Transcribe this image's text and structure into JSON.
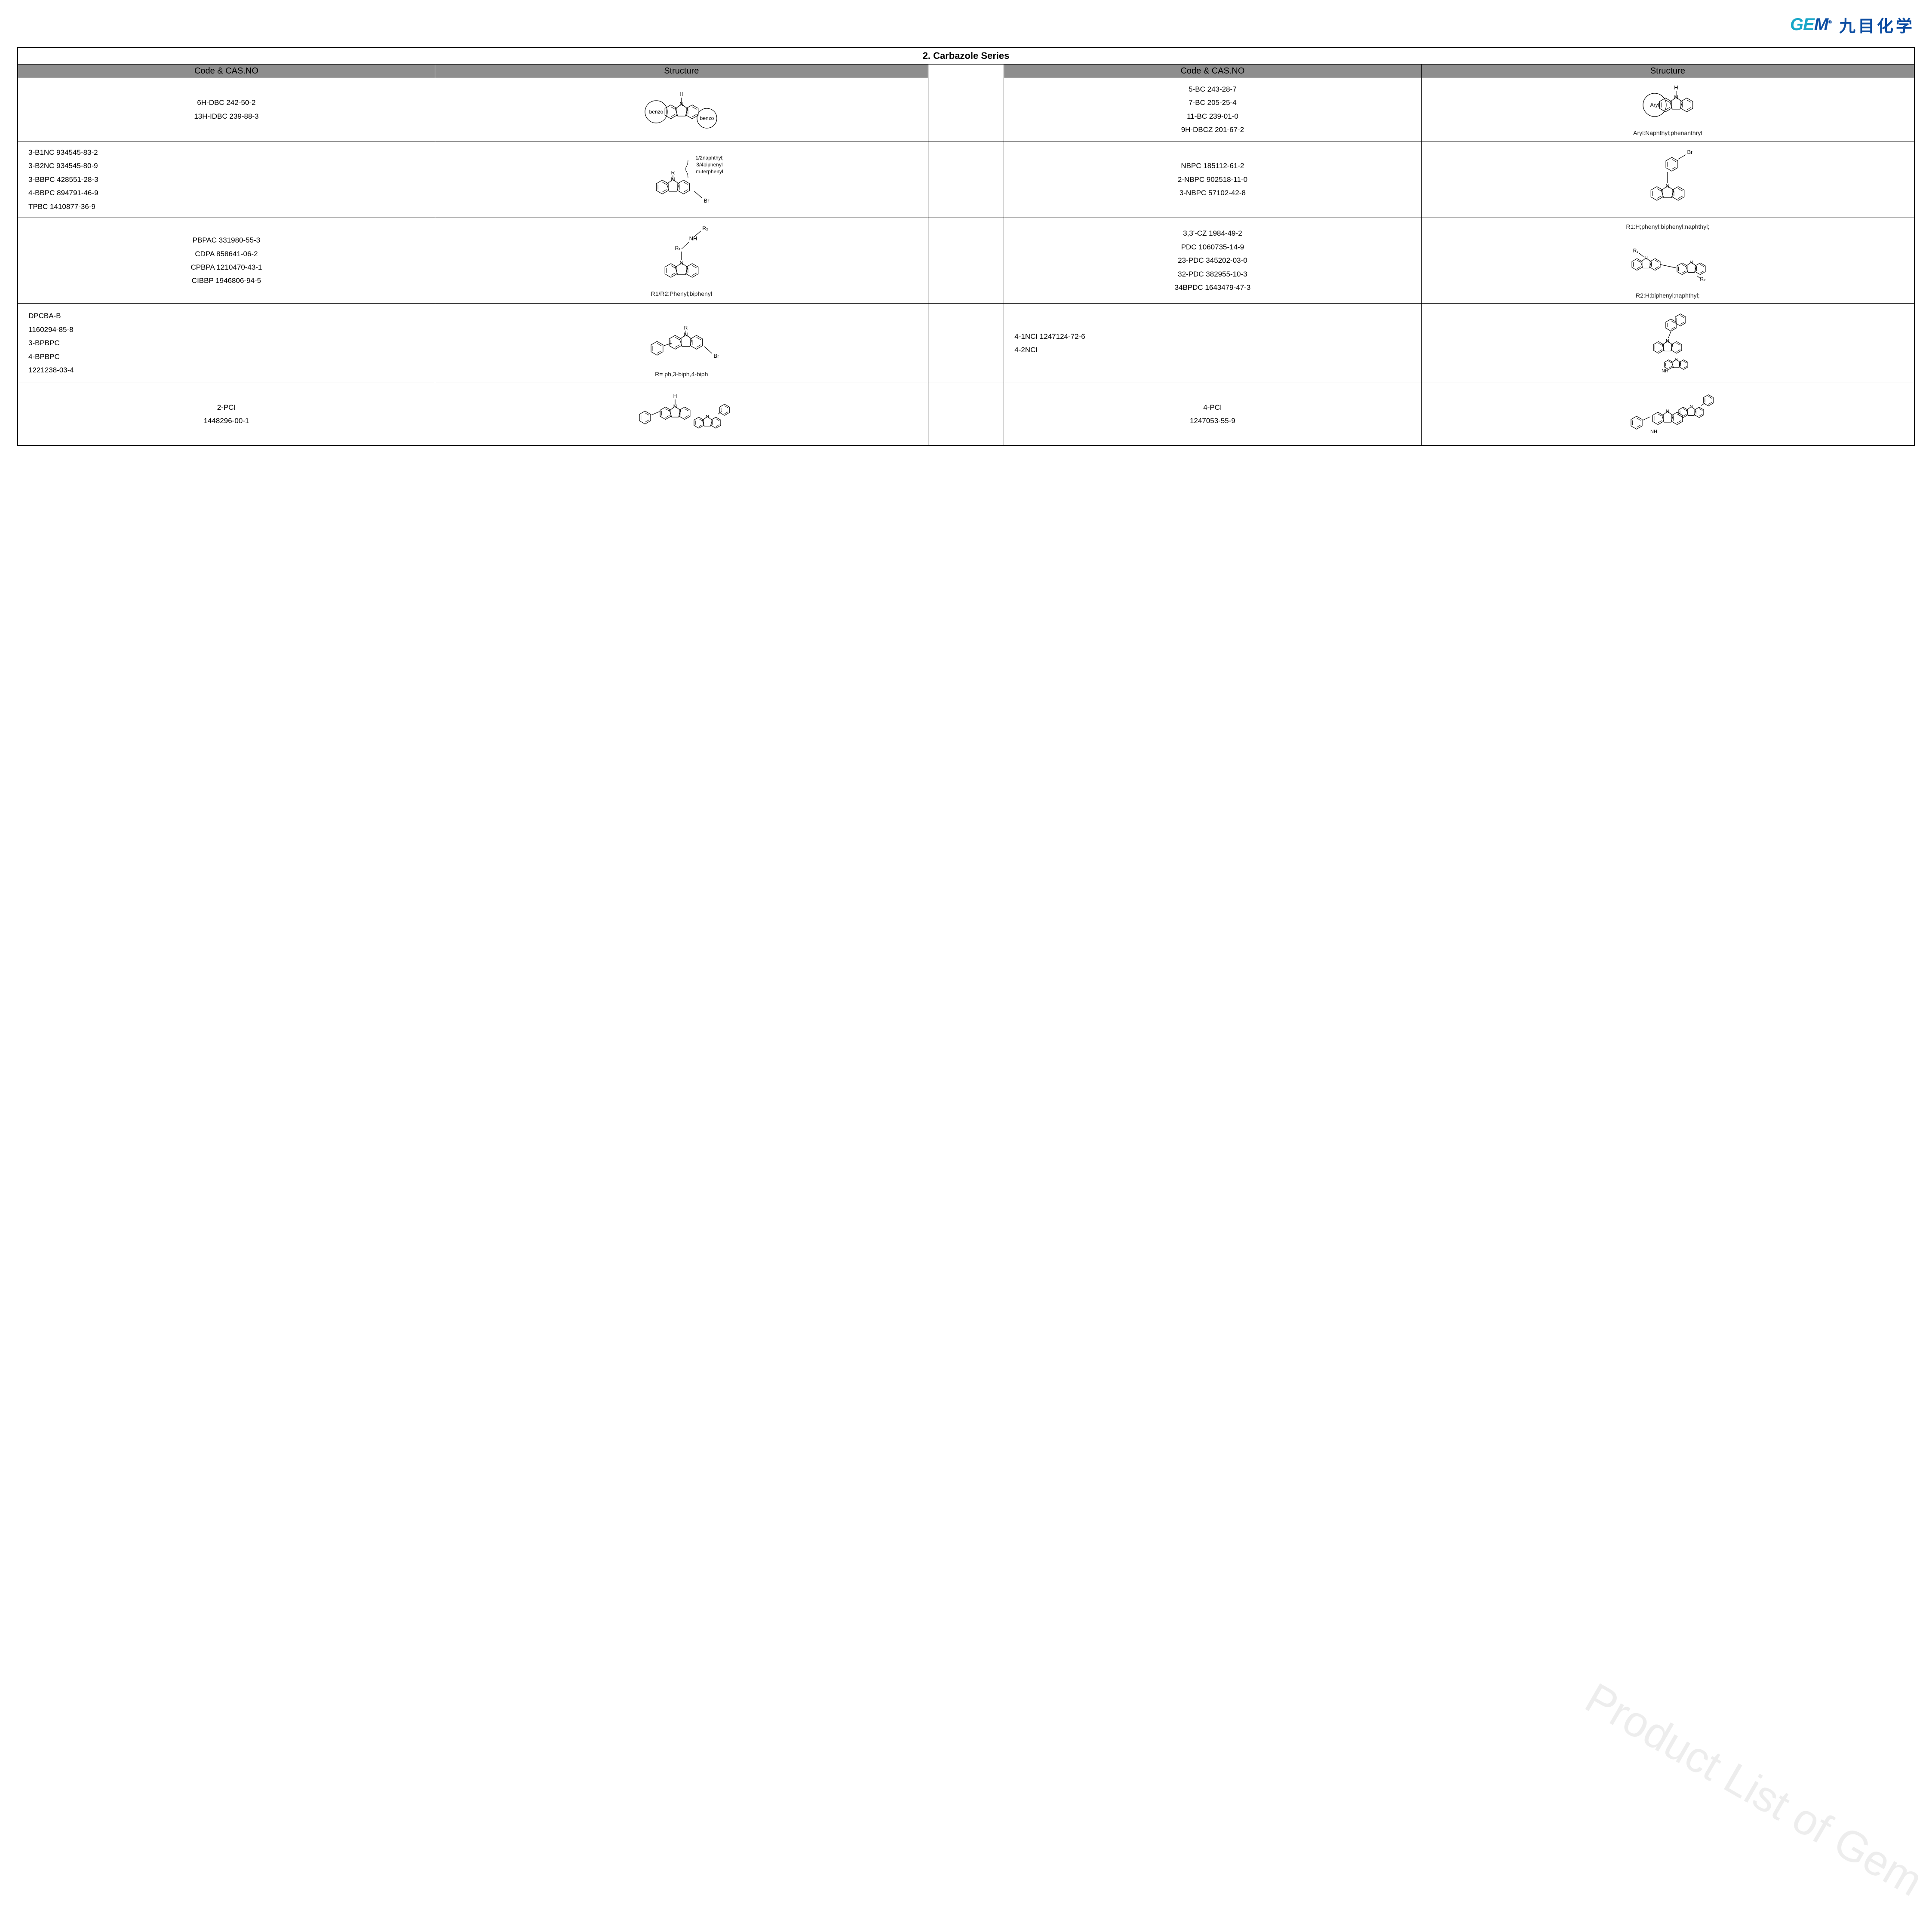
{
  "logo": {
    "gem": "GEM",
    "cn": "九目化学"
  },
  "title": "2. Carbazole Series",
  "headers": {
    "left1": "Code & CAS.NO",
    "left2": "Structure",
    "right1": "Code & CAS.NO",
    "right2": "Structure"
  },
  "watermark": "Product List of Gem",
  "rows": [
    {
      "l_codes": [
        "6H-DBC 242-50-2",
        "13H-IDBC 239-88-3"
      ],
      "l_struct_caption": "",
      "r_codes": [
        "5-BC 243-28-7",
        "7-BC 205-25-4",
        "11-BC 239-01-0",
        "9H-DBCZ 201-67-2"
      ],
      "r_struct_caption": "Aryl:Naphthyl;phenanthryl"
    },
    {
      "l_codes": [
        "3-B1NC 934545-83-2",
        "3-B2NC 934545-80-9",
        "3-BBPC 428551-28-3",
        "4-BBPC 894791-46-9",
        "TPBC 1410877-36-9"
      ],
      "l_struct_caption": "",
      "l_struct_note": [
        "1/2naphthyl;",
        "3/4biphenyl",
        "m-terphenyl"
      ],
      "r_codes": [
        "NBPC 185112-61-2",
        "2-NBPC 902518-11-0",
        "3-NBPC 57102-42-8"
      ],
      "r_struct_caption": ""
    },
    {
      "l_codes": [
        "PBPAC 331980-55-3",
        "CDPA 858641-06-2",
        "CPBPA 1210470-43-1",
        "CIBBP 1946806-94-5"
      ],
      "l_struct_caption": "R1/R2:Phenyl;biphenyl",
      "r_codes": [
        "3,3'-CZ 1984-49-2",
        "PDC 1060735-14-9",
        "23-PDC 345202-03-0",
        "32-PDC 382955-10-3",
        "34BPDC 1643479-47-3"
      ],
      "r_struct_caption": "R2:H;biphenyl;naphthyl;",
      "r_struct_top": "R1:H;phenyl;biphenyl;naphthyl;"
    },
    {
      "l_codes": [
        "DPCBA-B",
        "1160294-85-8",
        "3-BPBPC",
        "4-BPBPC",
        "1221238-03-4"
      ],
      "l_struct_caption": "R= ph,3-biph,4-biph",
      "r_codes": [
        "4-1NCI 1247124-72-6",
        "4-2NCI"
      ],
      "r_struct_caption": ""
    },
    {
      "l_codes": [
        "2-PCI",
        "1448296-00-1"
      ],
      "l_struct_caption": "",
      "r_codes": [
        "4-PCI",
        "1247053-55-9"
      ],
      "r_struct_caption": ""
    }
  ],
  "svg_labels": {
    "benzo": "benzo",
    "aryl": "Aryl",
    "H": "H",
    "N": "N",
    "R": "R",
    "R1": "R₁",
    "R2": "R₂",
    "NH2": "NH",
    "Br": "Br",
    "NH": "NH"
  }
}
